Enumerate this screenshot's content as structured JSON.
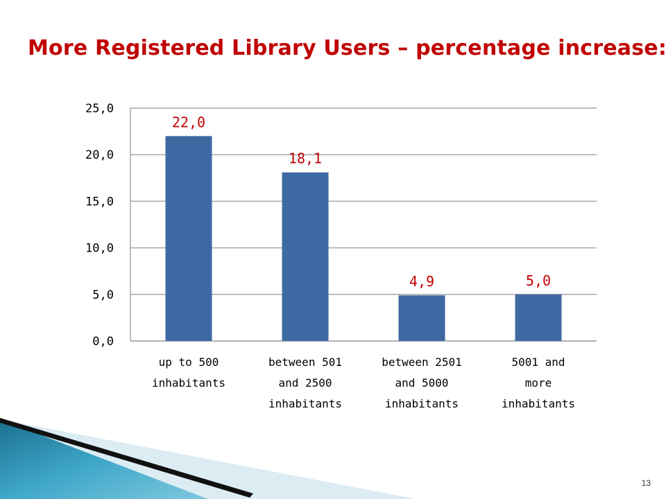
{
  "slide": {
    "title": "More Registered Library Users – percentage increase:",
    "page_number": "13"
  },
  "colors": {
    "title": "#c00000",
    "bar": "#3e6aa3",
    "data_label": "#c00000",
    "gridline": "#a6a6a6"
  },
  "chart_data": {
    "type": "bar",
    "title": "",
    "xlabel": "",
    "ylabel": "",
    "categories": [
      [
        "up to 500",
        "inhabitants"
      ],
      [
        "between 501",
        "and 2500",
        "inhabitants"
      ],
      [
        "between 2501",
        "and 5000",
        "inhabitants"
      ],
      [
        "5001 and",
        "more",
        "inhabitants"
      ]
    ],
    "values": [
      22.0,
      18.1,
      4.9,
      5.0
    ],
    "data_labels": [
      "22,0",
      "18,1",
      "4,9",
      "5,0"
    ],
    "ylim": [
      0,
      25
    ],
    "yticks": [
      0,
      5,
      10,
      15,
      20,
      25
    ],
    "ytick_labels": [
      "0,0",
      "5,0",
      "10,0",
      "15,0",
      "20,0",
      "25,0"
    ],
    "grid": true,
    "legend": "none"
  }
}
